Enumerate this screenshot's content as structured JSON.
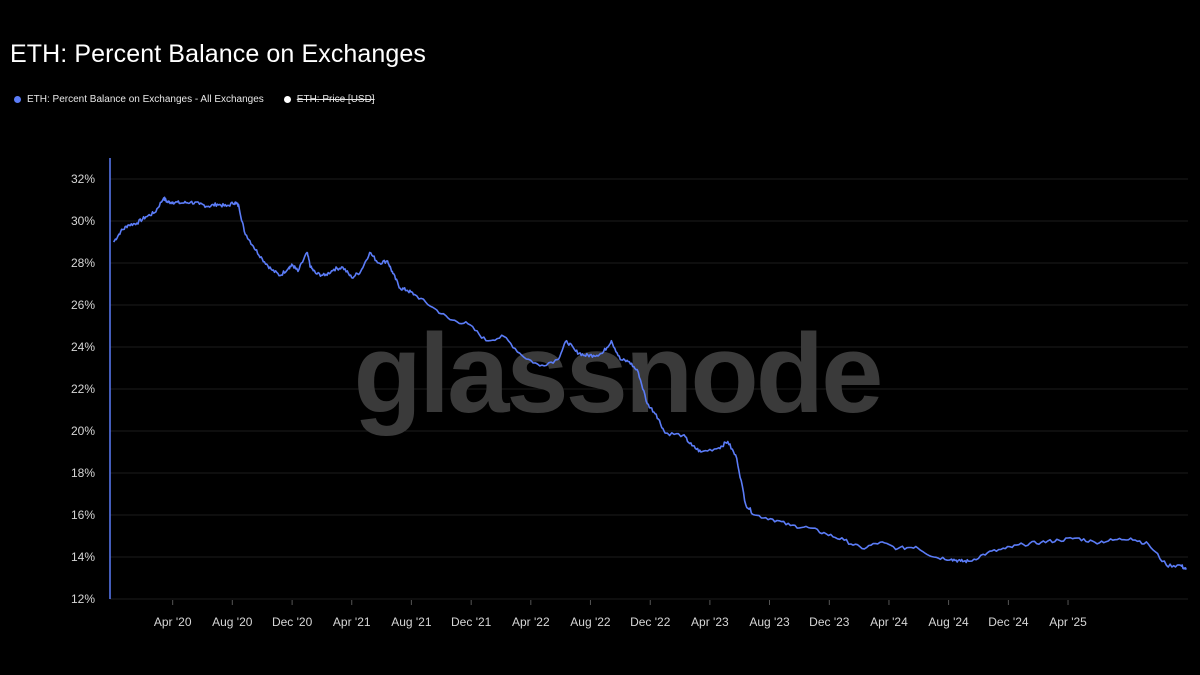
{
  "colors": {
    "series": "#5b7cf7",
    "price": "#ffffff",
    "grid": "#1c1c1c",
    "axis": "#5b7cf7"
  },
  "watermark": "glassnode",
  "chart_data": {
    "type": "line",
    "title": "ETH: Percent Balance on Exchanges",
    "legend": [
      {
        "name": "ETH: Percent Balance on Exchanges - All Exchanges",
        "color": "#5b7cf7",
        "active": true
      },
      {
        "name": "ETH: Price [USD]",
        "color": "#ffffff",
        "active": false
      }
    ],
    "y_ticks": [
      "32%",
      "30%",
      "28%",
      "26%",
      "24%",
      "22%",
      "20%",
      "18%",
      "16%",
      "14%",
      "12%"
    ],
    "y_tick_values": [
      32,
      30,
      28,
      26,
      24,
      22,
      20,
      18,
      16,
      14,
      12
    ],
    "ylim": [
      12,
      33
    ],
    "x_ticks": [
      "Apr '20",
      "Aug '20",
      "Dec '20",
      "Apr '21",
      "Aug '21",
      "Dec '21",
      "Apr '22",
      "Aug '22",
      "Dec '22",
      "Apr '23",
      "Aug '23",
      "Dec '23",
      "Apr '24",
      "Aug '24",
      "Dec '24",
      "Apr '25"
    ],
    "x_tick_values": [
      2020.25,
      2020.583,
      2020.917,
      2021.25,
      2021.583,
      2021.917,
      2022.25,
      2022.583,
      2022.917,
      2023.25,
      2023.583,
      2023.917,
      2024.25,
      2024.583,
      2024.917,
      2025.25
    ],
    "xlim": [
      2019.9,
      2025.92
    ],
    "series": [
      {
        "name": "ETH: Percent Balance on Exchanges - All Exchanges",
        "x": [
          2019.92,
          2019.96,
          2020.0,
          2020.05,
          2020.1,
          2020.15,
          2020.2,
          2020.22,
          2020.25,
          2020.3,
          2020.35,
          2020.4,
          2020.45,
          2020.5,
          2020.55,
          2020.6,
          2020.62,
          2020.65,
          2020.7,
          2020.75,
          2020.8,
          2020.85,
          2020.9,
          2020.92,
          2020.95,
          2021.0,
          2021.02,
          2021.05,
          2021.1,
          2021.15,
          2021.2,
          2021.25,
          2021.3,
          2021.35,
          2021.4,
          2021.45,
          2021.48,
          2021.52,
          2021.56,
          2021.6,
          2021.7,
          2021.8,
          2021.9,
          2022.0,
          2022.1,
          2022.2,
          2022.3,
          2022.4,
          2022.45,
          2022.5,
          2022.55,
          2022.6,
          2022.65,
          2022.7,
          2022.75,
          2022.8,
          2022.85,
          2022.9,
          2022.95,
          2023.0,
          2023.1,
          2023.15,
          2023.2,
          2023.3,
          2023.35,
          2023.4,
          2023.45,
          2023.5,
          2023.6,
          2023.7,
          2023.8,
          2023.9,
          2024.0,
          2024.1,
          2024.2,
          2024.3,
          2024.4,
          2024.5,
          2024.6,
          2024.65,
          2024.7,
          2024.8,
          2024.9,
          2025.0,
          2025.1,
          2025.2,
          2025.3,
          2025.4,
          2025.5,
          2025.6,
          2025.7,
          2025.8,
          2025.88,
          2025.91
        ],
        "values": [
          29.0,
          29.5,
          29.8,
          29.9,
          30.2,
          30.4,
          31.1,
          30.9,
          30.9,
          30.85,
          30.9,
          30.8,
          30.7,
          30.8,
          30.7,
          30.9,
          30.7,
          29.5,
          28.8,
          28.2,
          27.7,
          27.4,
          27.8,
          27.9,
          27.6,
          28.5,
          27.8,
          27.5,
          27.4,
          27.7,
          27.8,
          27.3,
          27.6,
          28.5,
          28.0,
          28.1,
          27.5,
          26.8,
          26.7,
          26.5,
          25.9,
          25.3,
          25.1,
          24.3,
          24.5,
          23.6,
          23.1,
          23.4,
          24.3,
          23.8,
          23.6,
          23.6,
          23.7,
          24.3,
          23.4,
          23.3,
          22.8,
          21.3,
          20.8,
          19.9,
          19.8,
          19.3,
          19.0,
          19.2,
          19.5,
          18.7,
          16.5,
          16.0,
          15.8,
          15.5,
          15.4,
          15.1,
          14.8,
          14.4,
          14.7,
          14.4,
          14.5,
          14.0,
          13.9,
          13.8,
          13.8,
          14.2,
          14.4,
          14.6,
          14.7,
          14.8,
          14.9,
          14.7,
          14.8,
          14.9,
          14.6,
          13.6,
          13.6,
          13.4
        ]
      }
    ]
  }
}
